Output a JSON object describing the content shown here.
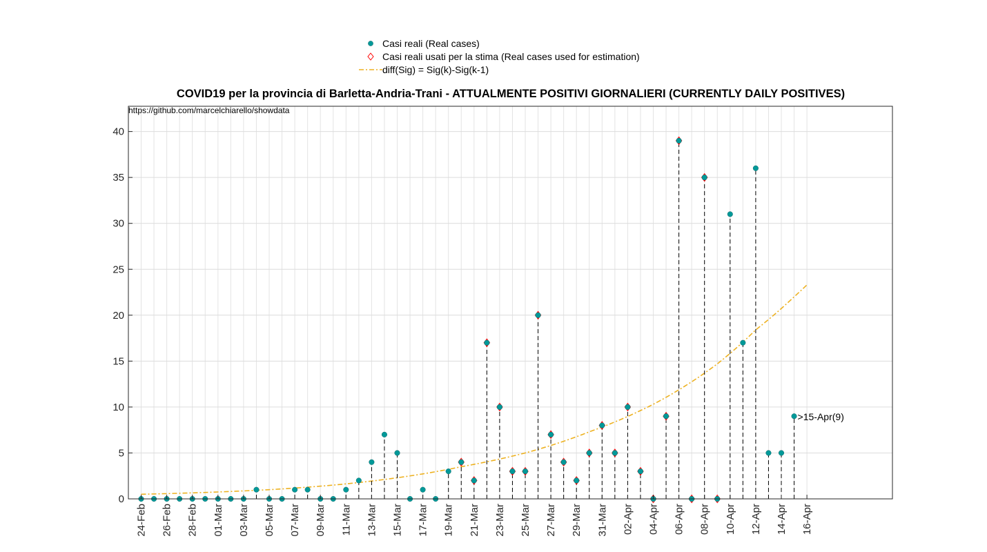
{
  "chart_data": {
    "type": "scatter",
    "title": "COVID19 per la provincia di Barletta-Andria-Trani - ATTUALMENTE POSITIVI GIORNALIERI (CURRENTLY DAILY POSITIVES)",
    "source_note": "https://github.com/marcelchiarello/showdata",
    "xlabel": "",
    "ylabel": "",
    "ylim": [
      0,
      43
    ],
    "y_ticks": [
      0,
      5,
      10,
      15,
      20,
      25,
      30,
      35,
      40
    ],
    "grid": true,
    "legend_position": "top-center",
    "legend": [
      {
        "label": "Casi reali (Real cases)",
        "marker": "dot"
      },
      {
        "label": "Casi reali usati per la stima (Real cases used for estimation)",
        "marker": "diamond"
      },
      {
        "label": "diff(Sig) = Sig(k)-Sig(k-1)",
        "marker": "dashdot-line"
      }
    ],
    "colors": {
      "real": "#009999",
      "estimation": "#ff0000",
      "fit": "#edb120",
      "stem": "#000000"
    },
    "x_tick_labels": [
      "24-Feb",
      "26-Feb",
      "28-Feb",
      "01-Mar",
      "03-Mar",
      "05-Mar",
      "07-Mar",
      "09-Mar",
      "11-Mar",
      "13-Mar",
      "15-Mar",
      "17-Mar",
      "19-Mar",
      "21-Mar",
      "23-Mar",
      "25-Mar",
      "27-Mar",
      "29-Mar",
      "31-Mar",
      "02-Apr",
      "04-Apr",
      "06-Apr",
      "08-Apr",
      "10-Apr",
      "12-Apr",
      "14-Apr",
      "16-Apr"
    ],
    "series": [
      {
        "name": "Casi reali (Real cases)",
        "x": [
          "24-Feb",
          "25-Feb",
          "26-Feb",
          "27-Feb",
          "28-Feb",
          "29-Feb",
          "01-Mar",
          "02-Mar",
          "03-Mar",
          "04-Mar",
          "05-Mar",
          "06-Mar",
          "07-Mar",
          "08-Mar",
          "09-Mar",
          "10-Mar",
          "11-Mar",
          "12-Mar",
          "13-Mar",
          "14-Mar",
          "15-Mar",
          "16-Mar",
          "17-Mar",
          "18-Mar",
          "19-Mar",
          "20-Mar",
          "21-Mar",
          "22-Mar",
          "23-Mar",
          "24-Mar",
          "25-Mar",
          "26-Mar",
          "27-Mar",
          "28-Mar",
          "29-Mar",
          "30-Mar",
          "31-Mar",
          "01-Apr",
          "02-Apr",
          "03-Apr",
          "04-Apr",
          "05-Apr",
          "06-Apr",
          "07-Apr",
          "08-Apr",
          "09-Apr",
          "10-Apr",
          "11-Apr",
          "12-Apr",
          "13-Apr",
          "14-Apr",
          "15-Apr"
        ],
        "y": [
          0,
          0,
          0,
          0,
          0,
          0,
          0,
          0,
          0,
          1,
          0,
          0,
          1,
          1,
          0,
          0,
          1,
          2,
          4,
          7,
          5,
          0,
          1,
          0,
          3,
          4,
          2,
          17,
          10,
          3,
          3,
          20,
          7,
          4,
          2,
          5,
          8,
          5,
          10,
          3,
          0,
          9,
          39,
          0,
          35,
          0,
          31,
          17,
          36,
          5,
          5,
          9
        ]
      },
      {
        "name": "Casi reali usati per la stima (Real cases used for estimation)",
        "x": [
          "20-Mar",
          "21-Mar",
          "22-Mar",
          "23-Mar",
          "24-Mar",
          "25-Mar",
          "26-Mar",
          "27-Mar",
          "28-Mar",
          "29-Mar",
          "30-Mar",
          "31-Mar",
          "01-Apr",
          "02-Apr",
          "03-Apr",
          "04-Apr",
          "05-Apr",
          "06-Apr",
          "07-Apr",
          "08-Apr",
          "09-Apr"
        ],
        "y": [
          4,
          2,
          17,
          10,
          3,
          3,
          20,
          7,
          4,
          2,
          5,
          8,
          5,
          10,
          3,
          0,
          9,
          39,
          0,
          35,
          0
        ]
      },
      {
        "name": "diff(Sig) = Sig(k)-Sig(k-1)",
        "x": [
          "24-Feb",
          "29-Feb",
          "05-Mar",
          "10-Mar",
          "15-Mar",
          "20-Mar",
          "25-Mar",
          "30-Mar",
          "04-Apr",
          "09-Apr",
          "12-Apr",
          "15-Apr",
          "16-Apr"
        ],
        "y": [
          0.5,
          0.7,
          1.0,
          1.5,
          2.3,
          3.5,
          5.0,
          7.3,
          10.3,
          14.7,
          18.4,
          22.0,
          23.3
        ]
      }
    ],
    "annotations": [
      {
        "x": "15-Apr",
        "y": 9,
        "text": ">15-Apr(9)"
      }
    ]
  }
}
